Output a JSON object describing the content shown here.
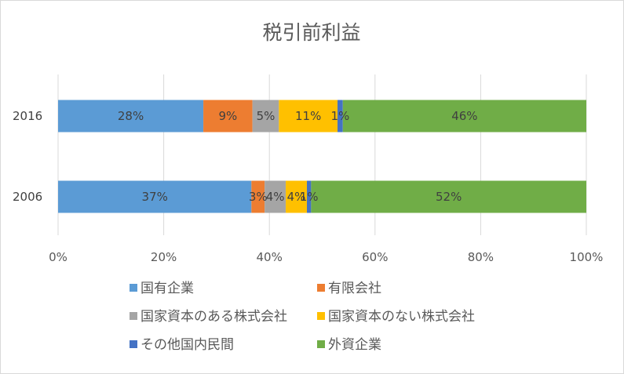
{
  "chart_data": {
    "type": "bar",
    "orientation": "horizontal",
    "stacked": "percent",
    "title": "税引前利益",
    "categories": [
      "2016",
      "2006"
    ],
    "xlim": [
      0,
      100
    ],
    "x_ticks": [
      "0%",
      "20%",
      "40%",
      "60%",
      "80%",
      "100%"
    ],
    "grid": true,
    "legend_position": "bottom",
    "series": [
      {
        "name": "国有企業",
        "color": "#5b9bd5",
        "values": [
          27.5,
          36.6
        ],
        "labels": [
          "28%",
          "37%"
        ]
      },
      {
        "name": "有限会社",
        "color": "#ed7d31",
        "values": [
          9.3,
          2.5
        ],
        "labels": [
          "9%",
          "3%"
        ]
      },
      {
        "name": "国家資本のある株式会社",
        "color": "#a5a5a5",
        "values": [
          5.0,
          4.0
        ],
        "labels": [
          "5%",
          "4%"
        ]
      },
      {
        "name": "国家資本のない株式会社",
        "color": "#ffc000",
        "values": [
          11.1,
          4.0
        ],
        "labels": [
          "11%",
          "4%"
        ]
      },
      {
        "name": "その他国内民間",
        "color": "#4472c4",
        "values": [
          1.0,
          0.8
        ],
        "labels": [
          "1%",
          "1%"
        ]
      },
      {
        "name": "外資企業",
        "color": "#70ad47",
        "values": [
          46.1,
          52.1
        ],
        "labels": [
          "46%",
          "52%"
        ]
      }
    ]
  }
}
